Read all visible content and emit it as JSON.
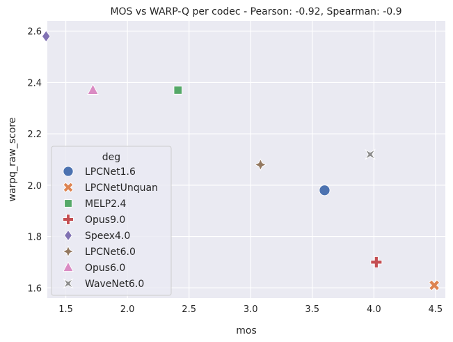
{
  "chart_data": {
    "type": "scatter",
    "title": "MOS vs WARP-Q per codec - Pearson: -0.92, Spearman: -0.9",
    "xlabel": "mos",
    "ylabel": "warpq_raw_score",
    "xlim": [
      1.35,
      4.58
    ],
    "ylim": [
      1.56,
      2.64
    ],
    "x_ticks": [
      1.5,
      2.0,
      2.5,
      3.0,
      3.5,
      4.0,
      4.5
    ],
    "y_ticks": [
      1.6,
      1.8,
      2.0,
      2.2,
      2.4,
      2.6
    ],
    "x_tick_labels": [
      "1.5",
      "2.0",
      "2.5",
      "3.0",
      "3.5",
      "4.0",
      "4.5"
    ],
    "y_tick_labels": [
      "1.6",
      "1.8",
      "2.0",
      "2.2",
      "2.4",
      "2.6"
    ],
    "grid": true,
    "legend_title": "deg",
    "legend_position": "center-left",
    "series": [
      {
        "name": "LPCNet1.6",
        "marker": "circle",
        "color": "#4c72b0",
        "x": [
          3.6
        ],
        "y": [
          1.98
        ]
      },
      {
        "name": "LPCNetUnquan",
        "marker": "x",
        "color": "#dd8452",
        "x": [
          4.49
        ],
        "y": [
          1.61
        ]
      },
      {
        "name": "MELP2.4",
        "marker": "square",
        "color": "#55a868",
        "x": [
          2.41
        ],
        "y": [
          2.37
        ]
      },
      {
        "name": "Opus9.0",
        "marker": "plus",
        "color": "#c44e52",
        "x": [
          4.02
        ],
        "y": [
          1.7
        ]
      },
      {
        "name": "Speex4.0",
        "marker": "diamond",
        "color": "#8172b3",
        "x": [
          1.34
        ],
        "y": [
          2.58
        ]
      },
      {
        "name": "LPCNet6.0",
        "marker": "star",
        "color": "#937860",
        "x": [
          3.08
        ],
        "y": [
          2.08
        ]
      },
      {
        "name": "Opus6.0",
        "marker": "triangle",
        "color": "#da8bc3",
        "x": [
          1.72
        ],
        "y": [
          2.37
        ]
      },
      {
        "name": "WaveNet6.0",
        "marker": "bowtie",
        "color": "#8c8c8c",
        "x": [
          3.97
        ],
        "y": [
          2.12
        ]
      }
    ]
  },
  "colors": {
    "plot_background": "#eaeaf2",
    "grid": "#ffffff",
    "text": "#262626",
    "legend_background": "#eaeaf2",
    "legend_border": "#cccccc"
  }
}
